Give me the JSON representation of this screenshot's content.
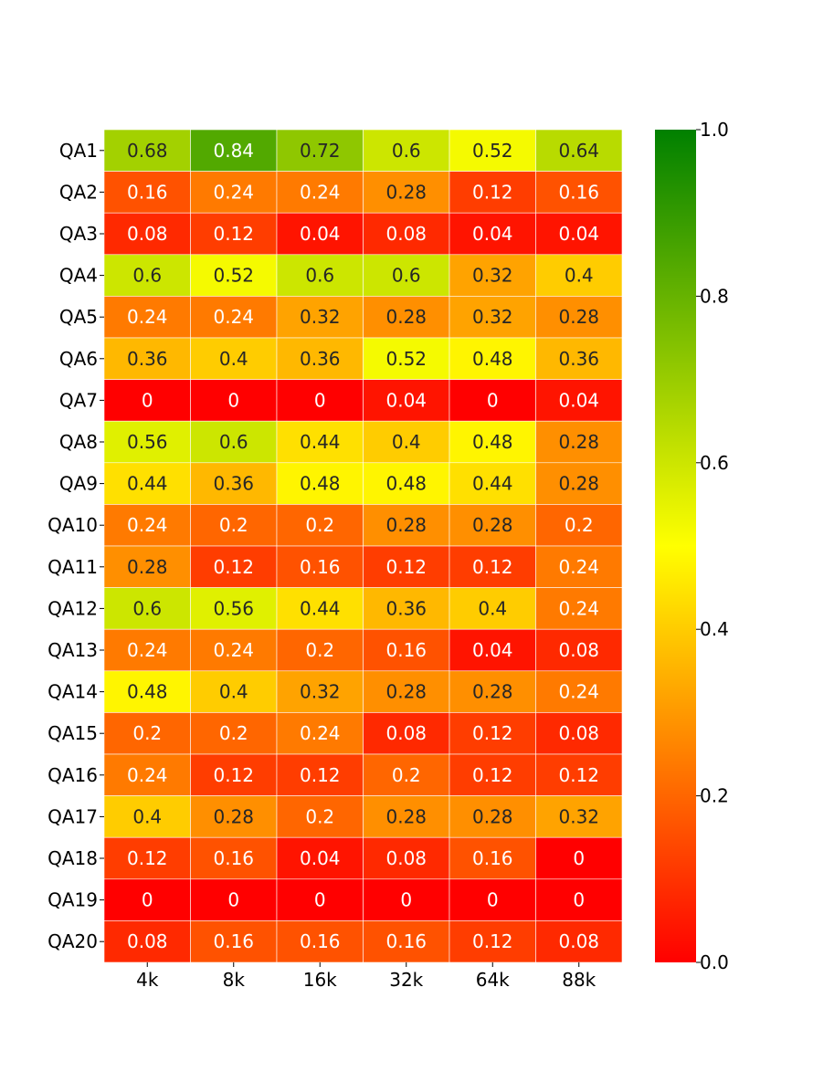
{
  "chart_data": {
    "type": "heatmap",
    "title": "",
    "xlabel": "",
    "ylabel": "",
    "columns": [
      "4k",
      "8k",
      "16k",
      "32k",
      "64k",
      "88k"
    ],
    "rows": [
      "QA1",
      "QA2",
      "QA3",
      "QA4",
      "QA5",
      "QA6",
      "QA7",
      "QA8",
      "QA9",
      "QA10",
      "QA11",
      "QA12",
      "QA13",
      "QA14",
      "QA15",
      "QA16",
      "QA17",
      "QA18",
      "QA19",
      "QA20"
    ],
    "values": [
      [
        0.68,
        0.84,
        0.72,
        0.6,
        0.52,
        0.64
      ],
      [
        0.16,
        0.24,
        0.24,
        0.28,
        0.12,
        0.16
      ],
      [
        0.08,
        0.12,
        0.04,
        0.08,
        0.04,
        0.04
      ],
      [
        0.6,
        0.52,
        0.6,
        0.6,
        0.32,
        0.4
      ],
      [
        0.24,
        0.24,
        0.32,
        0.28,
        0.32,
        0.28
      ],
      [
        0.36,
        0.4,
        0.36,
        0.52,
        0.48,
        0.36
      ],
      [
        0,
        0,
        0,
        0.04,
        0,
        0.04
      ],
      [
        0.56,
        0.6,
        0.44,
        0.4,
        0.48,
        0.28
      ],
      [
        0.44,
        0.36,
        0.48,
        0.48,
        0.44,
        0.28
      ],
      [
        0.24,
        0.2,
        0.2,
        0.28,
        0.28,
        0.2
      ],
      [
        0.28,
        0.12,
        0.16,
        0.12,
        0.12,
        0.24
      ],
      [
        0.6,
        0.56,
        0.44,
        0.36,
        0.4,
        0.24
      ],
      [
        0.24,
        0.24,
        0.2,
        0.16,
        0.04,
        0.08
      ],
      [
        0.48,
        0.4,
        0.32,
        0.28,
        0.28,
        0.24
      ],
      [
        0.2,
        0.2,
        0.24,
        0.08,
        0.12,
        0.08
      ],
      [
        0.24,
        0.12,
        0.12,
        0.2,
        0.12,
        0.12
      ],
      [
        0.4,
        0.28,
        0.2,
        0.28,
        0.28,
        0.32
      ],
      [
        0.12,
        0.16,
        0.04,
        0.08,
        0.16,
        0
      ],
      [
        0,
        0,
        0,
        0,
        0,
        0
      ],
      [
        0.08,
        0.16,
        0.16,
        0.16,
        0.12,
        0.08
      ]
    ],
    "colormap": {
      "stops": [
        {
          "value": 0.0,
          "color": "#ff0000"
        },
        {
          "value": 0.5,
          "color": "#ffff00"
        },
        {
          "value": 1.0,
          "color": "#008000"
        }
      ]
    },
    "colorbar": {
      "range": [
        0.0,
        1.0
      ],
      "ticks": [
        "0.0",
        "0.2",
        "0.4",
        "0.6",
        "0.8",
        "1.0"
      ],
      "tick_values": [
        0.0,
        0.2,
        0.4,
        0.6,
        0.8,
        1.0
      ],
      "placement": "right"
    },
    "annotation_colors": {
      "dark": "#262626",
      "light": "#ffffff"
    }
  }
}
